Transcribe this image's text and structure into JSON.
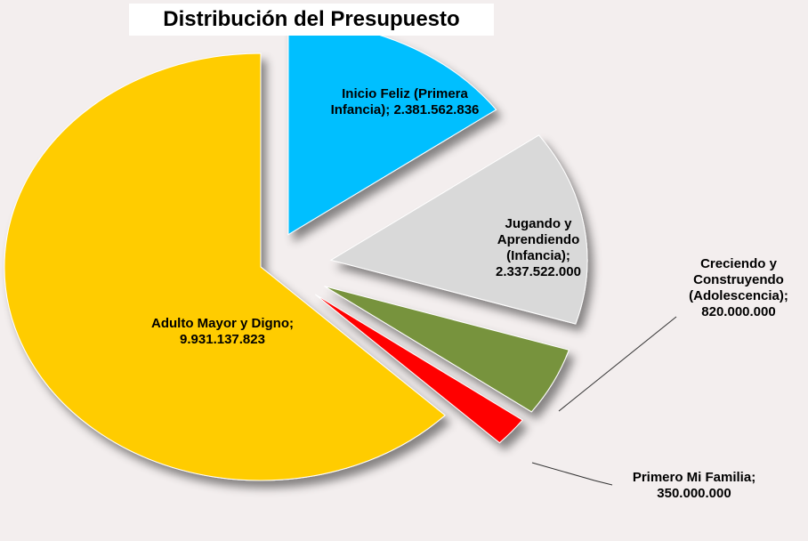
{
  "chart_data": {
    "type": "pie",
    "title": "Distribución del Presupuesto",
    "categories": [
      "Inicio Feliz (Primera Infancia)",
      "Jugando y Aprendiendo (Infancia)",
      "Creciendo y Construyendo (Adolescencia)",
      "Primero Mi Familia",
      "Adulto Mayor y Digno"
    ],
    "values": [
      2381562836,
      2337522000,
      820000000,
      350000000,
      9931137823
    ],
    "value_labels": [
      "2.381.562.836",
      "2.337.522.000",
      "820.000.000",
      "350.000.000",
      "9.931.137.823"
    ],
    "label_separator": ";",
    "colors": [
      "#00bfff",
      "#d9d9d9",
      "#77933c",
      "#ff0000",
      "#ffcc00"
    ]
  }
}
